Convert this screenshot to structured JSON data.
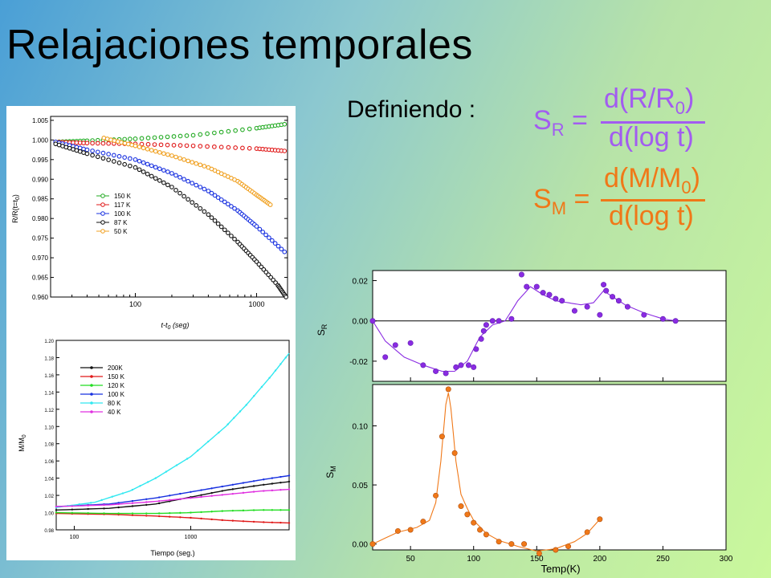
{
  "slide": {
    "title": "Relajaciones temporales",
    "definiendo": "Definiendo :",
    "sr_formula": {
      "symbol": "S",
      "sub": "R",
      "eq": "=",
      "num": "d(R/R",
      "num_sub": "0",
      "num_close": ")",
      "den": "d(log t)"
    },
    "sm_formula": {
      "symbol": "S",
      "sub": "M",
      "eq": "=",
      "num": "d(M/M",
      "num_sub": "0",
      "num_close": ")",
      "den": "d(log t)"
    }
  },
  "colors": {
    "purple": "#a25cf0",
    "orange": "#f07818"
  },
  "chart_data": [
    {
      "type": "scatter",
      "title": "",
      "xlabel": "t-t",
      "xlabel_sub": "0",
      "xlabel_tail": " (seg)",
      "ylabel": "R/R(t=t",
      "ylabel_sub": "0",
      "ylabel_tail": ")",
      "xscale": "log",
      "xlim": [
        20,
        1800
      ],
      "ylim": [
        0.96,
        1.006
      ],
      "xticks": [
        100,
        1000
      ],
      "xtick_labels": [
        "100",
        "1000"
      ],
      "yticks": [
        0.96,
        0.965,
        0.97,
        0.975,
        0.98,
        0.985,
        0.99,
        0.995,
        1.0,
        1.005
      ],
      "ytick_labels": [
        "0.960",
        "0.965",
        "0.970",
        "0.975",
        "0.980",
        "0.985",
        "0.990",
        "0.995",
        "1.000",
        "1.005"
      ],
      "legend_position": "left-middle",
      "series": [
        {
          "name": "150 K",
          "color": "#22aa22",
          "x": [
            22,
            40,
            100,
            300,
            1000,
            1700
          ],
          "y": [
            0.9995,
            0.9998,
            1.0003,
            1.0012,
            1.003,
            1.004
          ]
        },
        {
          "name": "117 K",
          "color": "#e01818",
          "x": [
            22,
            40,
            100,
            300,
            1000,
            1700
          ],
          "y": [
            0.9995,
            0.9992,
            0.999,
            0.9985,
            0.9978,
            0.9972
          ]
        },
        {
          "name": "100 K",
          "color": "#1830e0",
          "x": [
            22,
            40,
            100,
            200,
            400,
            700,
            1000,
            1700
          ],
          "y": [
            0.9995,
            0.9975,
            0.995,
            0.9915,
            0.987,
            0.982,
            0.978,
            0.9715
          ]
        },
        {
          "name": "87 K",
          "color": "#111111",
          "x": [
            22,
            40,
            100,
            200,
            400,
            700,
            1000,
            1500,
            1750
          ],
          "y": [
            0.999,
            0.9965,
            0.993,
            0.988,
            0.981,
            0.974,
            0.969,
            0.963,
            0.96
          ]
        },
        {
          "name": "50 K",
          "color": "#f0a020",
          "x": [
            55,
            100,
            200,
            400,
            700,
            1000,
            1300
          ],
          "y": [
            1.0005,
            0.9985,
            0.996,
            0.993,
            0.9895,
            0.986,
            0.9835
          ]
        }
      ]
    },
    {
      "type": "line",
      "title": "",
      "xlabel": "Tiempo (seg.)",
      "ylabel": "M/M",
      "ylabel_sub": "0",
      "xscale": "log",
      "xlim": [
        70,
        7000
      ],
      "ylim": [
        0.98,
        1.2
      ],
      "xticks": [
        100,
        1000
      ],
      "xtick_labels": [
        "100",
        "1000"
      ],
      "yticks": [
        0.98,
        1.0,
        1.02,
        1.04,
        1.06,
        1.08,
        1.1,
        1.12,
        1.14,
        1.16,
        1.18,
        1.2
      ],
      "ytick_labels": [
        "0.98",
        "1.00",
        "1.02",
        "1.04",
        "1.06",
        "1.08",
        "1.10",
        "1.12",
        "1.14",
        "1.16",
        "1.18",
        "1.20"
      ],
      "legend_position": "top-left",
      "series": [
        {
          "name": "200K",
          "color": "#111111",
          "x": [
            70,
            200,
            500,
            1000,
            2000,
            4000,
            7000
          ],
          "y": [
            1.003,
            1.005,
            1.01,
            1.018,
            1.026,
            1.032,
            1.036
          ]
        },
        {
          "name": "150 K",
          "color": "#e01818",
          "x": [
            70,
            200,
            500,
            1000,
            2000,
            4000,
            7000
          ],
          "y": [
            0.999,
            0.998,
            0.996,
            0.994,
            0.991,
            0.989,
            0.988
          ]
        },
        {
          "name": "120 K",
          "color": "#22dd22",
          "x": [
            70,
            200,
            500,
            1000,
            2000,
            4000,
            7000
          ],
          "y": [
            1.0,
            0.999,
            0.999,
            1.0,
            1.002,
            1.003,
            1.003
          ]
        },
        {
          "name": "100 K",
          "color": "#1830e0",
          "x": [
            70,
            200,
            500,
            1000,
            2000,
            4000,
            7000
          ],
          "y": [
            1.007,
            1.01,
            1.017,
            1.024,
            1.031,
            1.038,
            1.043
          ]
        },
        {
          "name": "80 K",
          "color": "#30e8f0",
          "x": [
            70,
            150,
            300,
            500,
            1000,
            2000,
            3000,
            5000,
            7000
          ],
          "y": [
            1.006,
            1.012,
            1.025,
            1.04,
            1.065,
            1.1,
            1.125,
            1.16,
            1.185
          ]
        },
        {
          "name": "40 K",
          "color": "#e030e0",
          "x": [
            70,
            200,
            500,
            1000,
            2000,
            4000,
            7000
          ],
          "y": [
            1.007,
            1.009,
            1.013,
            1.017,
            1.021,
            1.025,
            1.027
          ]
        }
      ]
    },
    {
      "type": "line",
      "title": "",
      "xlabel": "",
      "ylabel": "S",
      "ylabel_sub": "R",
      "xlim": [
        20,
        300
      ],
      "ylim": [
        -0.03,
        0.025
      ],
      "yticks": [
        -0.02,
        0.0,
        0.02
      ],
      "ytick_labels": [
        "-0.02",
        "0.00",
        "0.02"
      ],
      "zero_line": true,
      "color": "#8a2be2",
      "series": [
        {
          "name": "",
          "x": [
            20,
            30,
            38,
            50,
            60,
            70,
            78,
            86,
            90,
            96,
            100,
            102,
            106,
            108,
            110,
            115,
            120,
            130,
            138,
            142,
            150,
            155,
            160,
            165,
            170,
            180,
            190,
            200,
            203,
            205,
            210,
            215,
            222,
            235,
            250,
            260
          ],
          "y": [
            0.0,
            -0.018,
            -0.012,
            -0.011,
            -0.022,
            -0.025,
            -0.026,
            -0.023,
            -0.022,
            -0.022,
            -0.023,
            -0.014,
            -0.009,
            -0.005,
            -0.002,
            0.0,
            0.0,
            0.001,
            0.023,
            0.017,
            0.017,
            0.014,
            0.013,
            0.011,
            0.01,
            0.005,
            0.007,
            0.003,
            0.018,
            0.015,
            0.012,
            0.01,
            0.007,
            0.003,
            0.001,
            0.0
          ]
        }
      ],
      "fit": {
        "x": [
          20,
          30,
          45,
          60,
          75,
          85,
          95,
          105,
          115,
          125,
          135,
          145,
          155,
          165,
          175,
          185,
          195,
          203,
          210,
          220,
          235,
          250,
          260
        ],
        "y": [
          0.0,
          -0.01,
          -0.018,
          -0.022,
          -0.025,
          -0.025,
          -0.02,
          -0.008,
          -0.002,
          0.0,
          0.01,
          0.017,
          0.013,
          0.01,
          0.009,
          0.008,
          0.009,
          0.015,
          0.012,
          0.008,
          0.004,
          0.001,
          0.0
        ]
      }
    },
    {
      "type": "line",
      "title": "",
      "xlabel": "Temp(K)",
      "ylabel": "S",
      "ylabel_sub": "M",
      "xlim": [
        20,
        300
      ],
      "ylim": [
        -0.005,
        0.135
      ],
      "xticks": [
        50,
        100,
        150,
        200,
        250,
        300
      ],
      "xtick_labels": [
        "50",
        "100",
        "150",
        "200",
        "250",
        "300"
      ],
      "yticks": [
        0.0,
        0.05,
        0.1
      ],
      "ytick_labels": [
        "0.00",
        "0.05",
        "0.10"
      ],
      "color": "#f07818",
      "series": [
        {
          "name": "",
          "x": [
            20,
            40,
            50,
            60,
            70,
            75,
            80,
            85,
            90,
            95,
            100,
            105,
            110,
            120,
            130,
            140,
            152,
            165,
            175,
            190,
            200
          ],
          "y": [
            0.0,
            0.011,
            0.012,
            0.019,
            0.041,
            0.091,
            0.131,
            0.077,
            0.032,
            0.025,
            0.018,
            0.012,
            0.008,
            0.002,
            0.0,
            0.0,
            -0.008,
            -0.005,
            -0.002,
            0.01,
            0.021
          ]
        }
      ],
      "fit": {
        "x": [
          20,
          40,
          55,
          65,
          70,
          74,
          78,
          80,
          82,
          86,
          90,
          95,
          100,
          110,
          120,
          135,
          150,
          165,
          180,
          190,
          200
        ],
        "y": [
          0.0,
          0.01,
          0.014,
          0.02,
          0.035,
          0.07,
          0.118,
          0.128,
          0.115,
          0.07,
          0.042,
          0.03,
          0.02,
          0.009,
          0.003,
          -0.002,
          -0.006,
          -0.004,
          0.002,
          0.009,
          0.021
        ]
      }
    }
  ]
}
